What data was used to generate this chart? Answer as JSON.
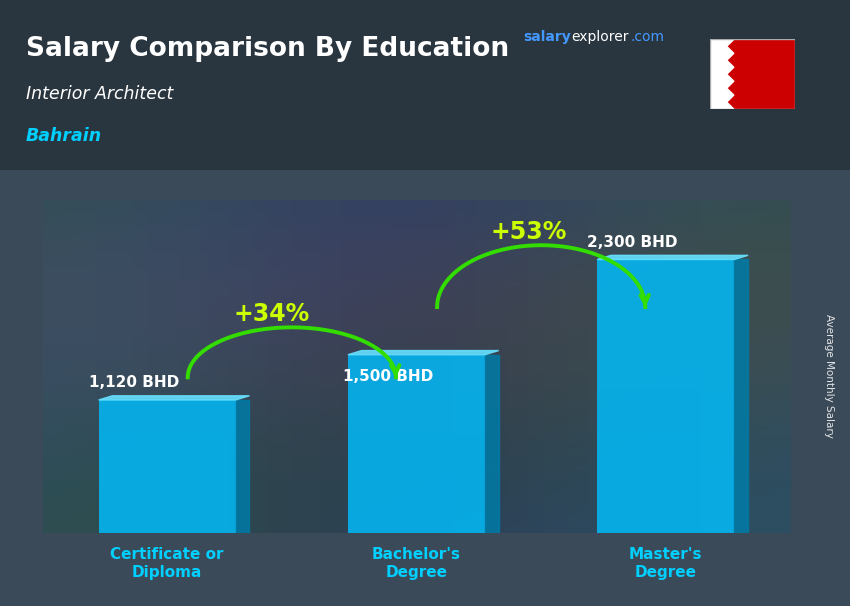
{
  "title": "Salary Comparison By Education",
  "subtitle": "Interior Architect",
  "country": "Bahrain",
  "categories": [
    "Certificate or\nDiploma",
    "Bachelor's\nDegree",
    "Master's\nDegree"
  ],
  "values": [
    1120,
    1500,
    2300
  ],
  "value_labels": [
    "1,120 BHD",
    "1,500 BHD",
    "2,300 BHD"
  ],
  "pct_labels": [
    "+34%",
    "+53%"
  ],
  "bar_color": "#00BFFF",
  "bar_color_dark": "#007BA7",
  "bar_top_color": "#66E0FF",
  "pct_color": "#CCFF00",
  "arrow_color": "#33DD00",
  "title_color": "#FFFFFF",
  "subtitle_color": "#FFFFFF",
  "country_color": "#00CFFF",
  "xlabel_color": "#00CFFF",
  "value_label_color": "#FFFFFF",
  "bg_color": "#3a4a58",
  "ylabel": "Average Monthly Salary",
  "ylim_max": 2800,
  "bar_width": 0.55,
  "bar_positions": [
    0,
    1,
    2
  ]
}
